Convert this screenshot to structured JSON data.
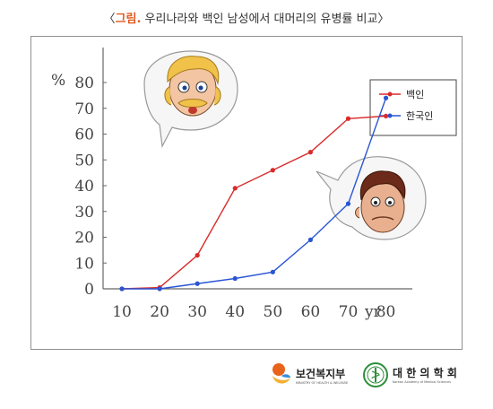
{
  "caption": {
    "open": "〈",
    "prefix": "그림.",
    "text": " 우리나라와 백인 남성에서 대머리의 유병률 비교",
    "close": "〉"
  },
  "chart_data": {
    "type": "line",
    "xlabel": "",
    "ylabel": "",
    "y_unit": "%",
    "x_unit": "yr",
    "x_ticks": [
      10,
      20,
      30,
      40,
      50,
      60,
      70,
      80
    ],
    "y_ticks": [
      0,
      10,
      20,
      30,
      40,
      50,
      60,
      70,
      80
    ],
    "xlim": [
      5,
      87
    ],
    "ylim": [
      0,
      80
    ],
    "grid": false,
    "legend_position": "top-right",
    "series": [
      {
        "name": "백인",
        "color": "#d92b2b",
        "x": [
          10,
          20,
          30,
          40,
          50,
          60,
          70,
          80
        ],
        "values": [
          0,
          0.5,
          13,
          39,
          46,
          53,
          66,
          67
        ]
      },
      {
        "name": "한국인",
        "color": "#2a55d4",
        "x": [
          10,
          20,
          30,
          40,
          50,
          60,
          70,
          80
        ],
        "values": [
          0,
          0,
          2,
          4,
          6.5,
          19,
          33,
          74
        ]
      }
    ]
  },
  "illustrations": {
    "white_man": "blond-man-face-illustration",
    "korean_man": "dark-haired-man-face-illustration"
  },
  "footer": {
    "org1": {
      "name": "보건복지부",
      "sub": "MINISTRY OF HEALTH & WELFARE",
      "logo_colors": [
        "#e8641b",
        "#f2b134",
        "#3a8fd6"
      ]
    },
    "org2": {
      "name": "대 한 의 학 회",
      "sub": "Korean Academy of Medical Sciences",
      "logo_color": "#2f8f3c"
    }
  }
}
